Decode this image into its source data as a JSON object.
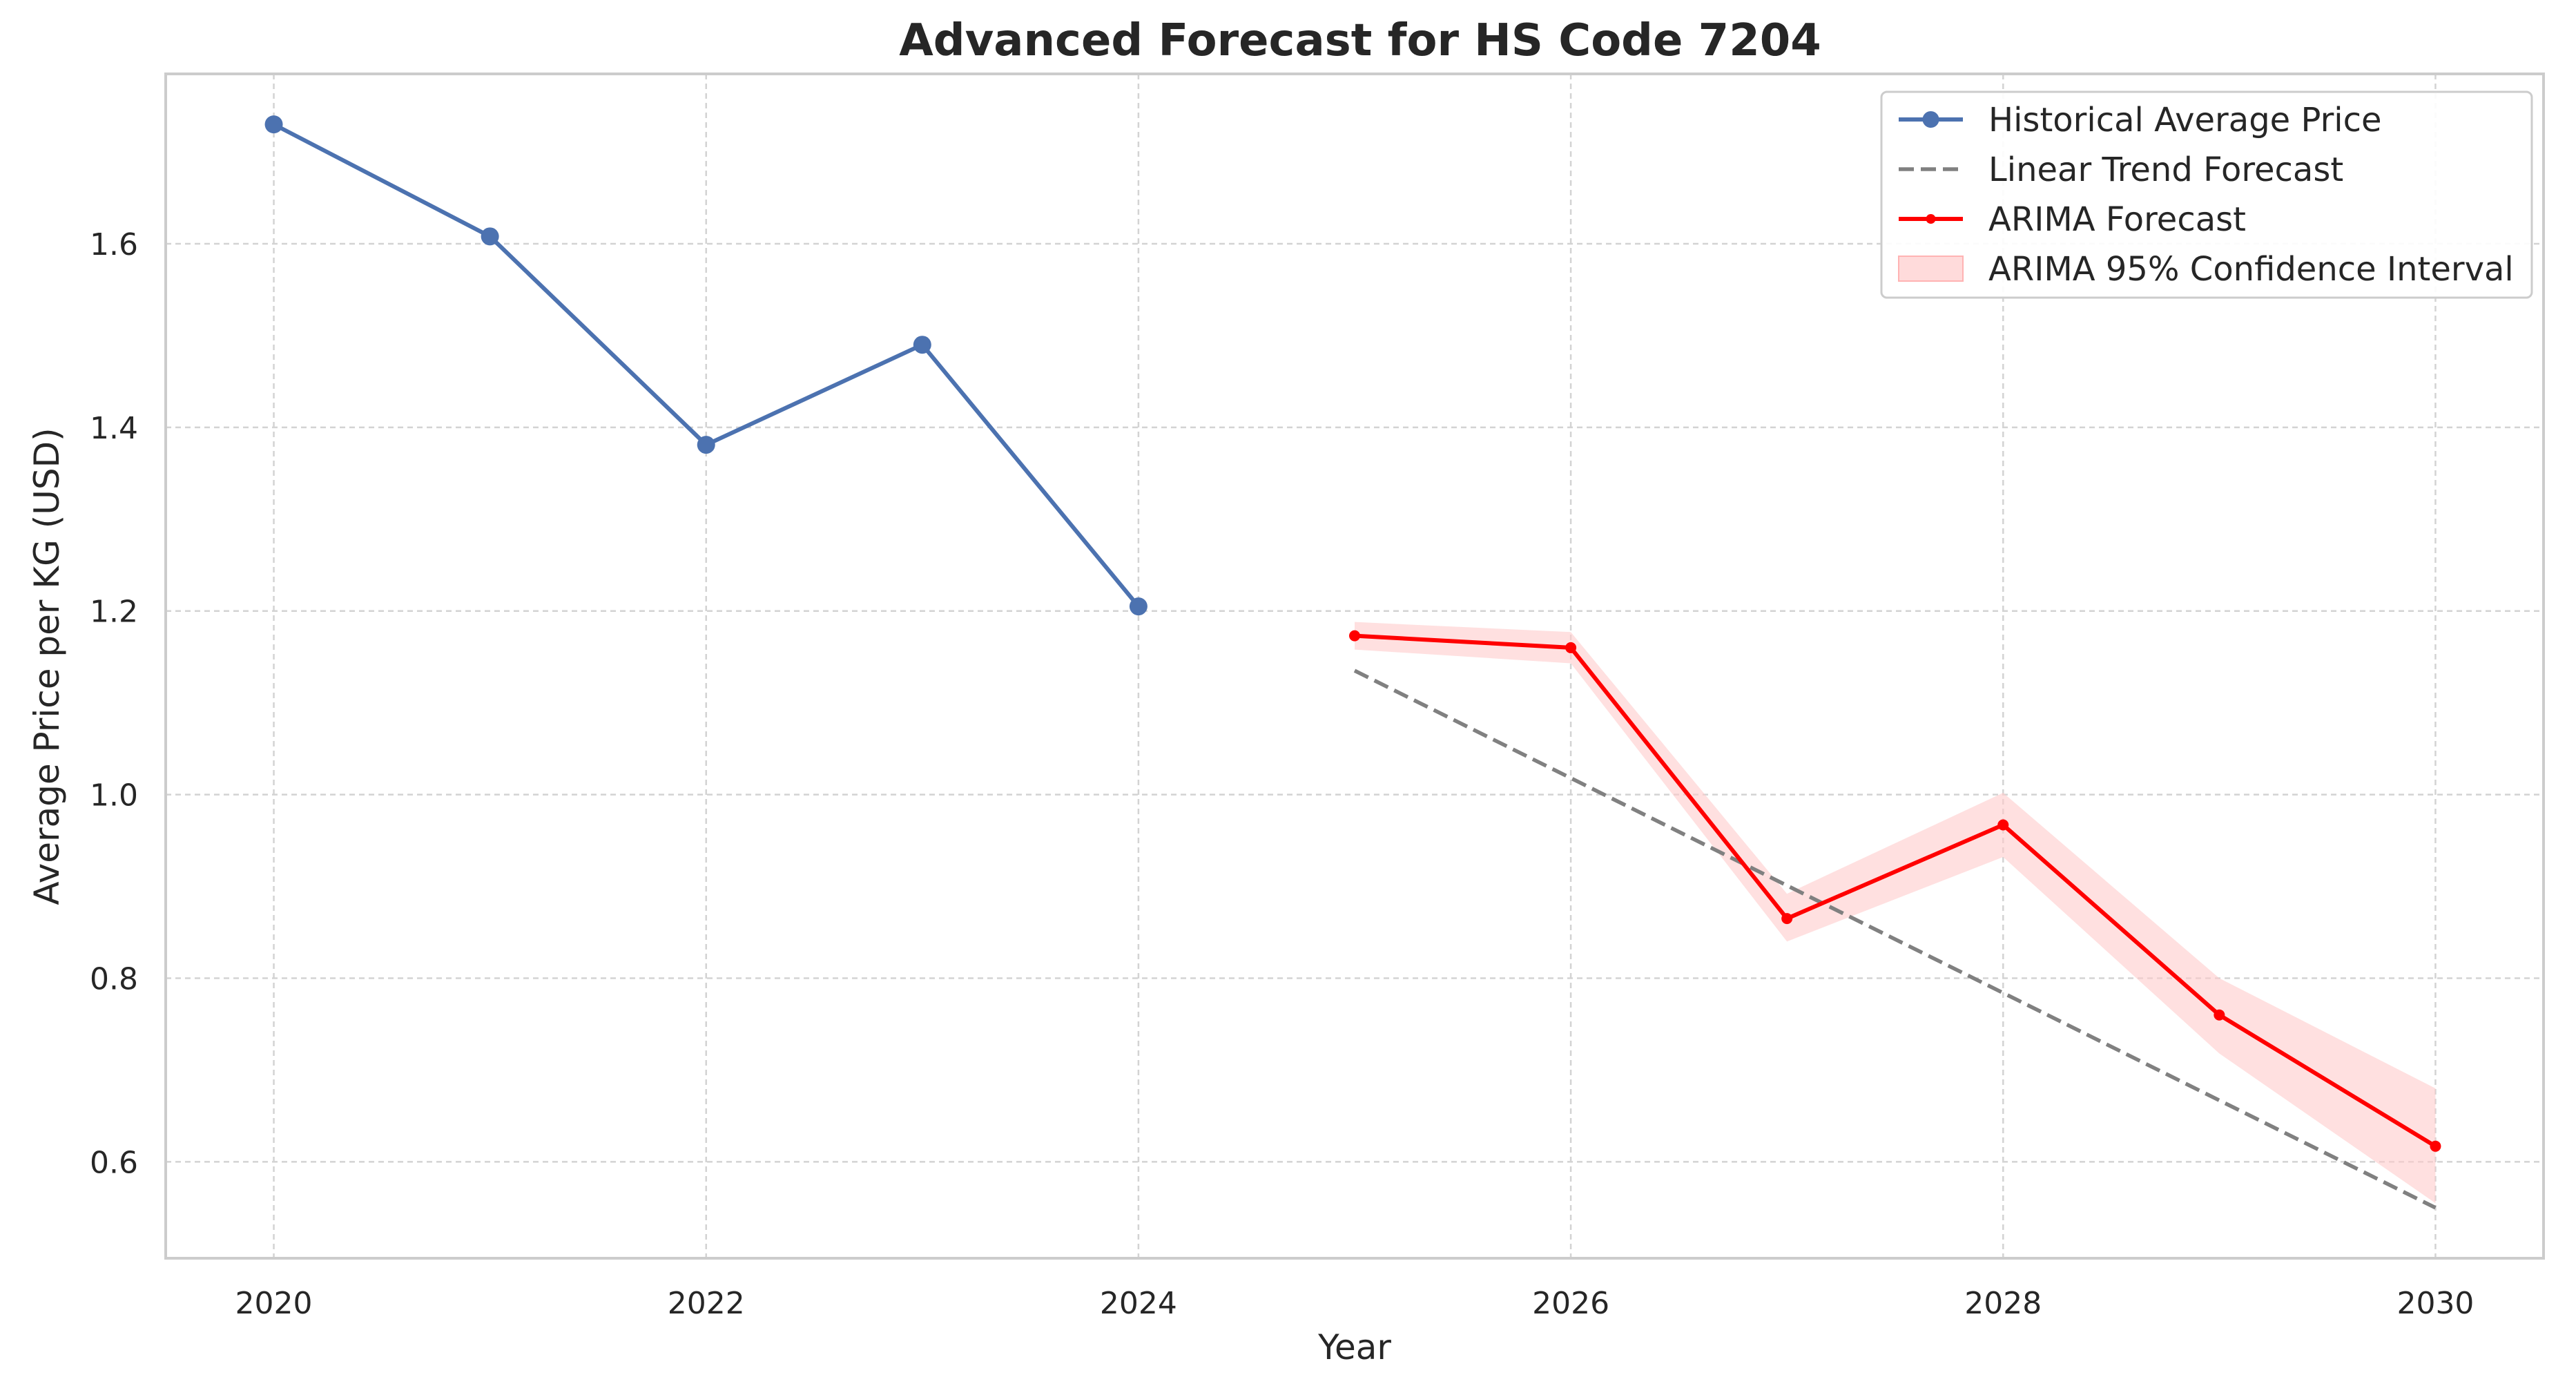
{
  "chart_data": {
    "type": "line",
    "title": "Advanced Forecast for HS Code 7204",
    "xlabel": "Year",
    "ylabel": "Average Price per KG (USD)",
    "xlim": [
      2019.5,
      2030.5
    ],
    "ylim": [
      0.495,
      1.785
    ],
    "x_ticks": [
      2020,
      2022,
      2024,
      2026,
      2028,
      2030
    ],
    "y_ticks": [
      0.6,
      0.8,
      1.0,
      1.2,
      1.4,
      1.6
    ],
    "grid": true,
    "legend_position": "top-right",
    "series": [
      {
        "name": "Historical Average Price",
        "style": "solid-line-with-circle-markers",
        "color": "#4c72b0",
        "x": [
          2020,
          2021,
          2022,
          2023,
          2024
        ],
        "y": [
          1.73,
          1.608,
          1.381,
          1.49,
          1.205
        ]
      },
      {
        "name": "Linear Trend Forecast",
        "style": "dashed-line",
        "color": "#808080",
        "x": [
          2025,
          2030
        ],
        "y": [
          1.135,
          0.55
        ]
      },
      {
        "name": "ARIMA Forecast",
        "style": "solid-line-with-small-markers",
        "color": "#ff0000",
        "x": [
          2025,
          2026,
          2027,
          2028,
          2029,
          2030
        ],
        "y": [
          1.173,
          1.16,
          0.865,
          0.967,
          0.76,
          0.617
        ]
      }
    ],
    "bands": [
      {
        "name": "ARIMA 95% Confidence Interval",
        "color": "#ffcccc",
        "x": [
          2025,
          2026,
          2027,
          2028,
          2029,
          2030
        ],
        "lower": [
          1.158,
          1.143,
          0.84,
          0.932,
          0.718,
          0.555
        ],
        "upper": [
          1.188,
          1.177,
          0.892,
          1.002,
          0.8,
          0.68
        ]
      }
    ]
  }
}
